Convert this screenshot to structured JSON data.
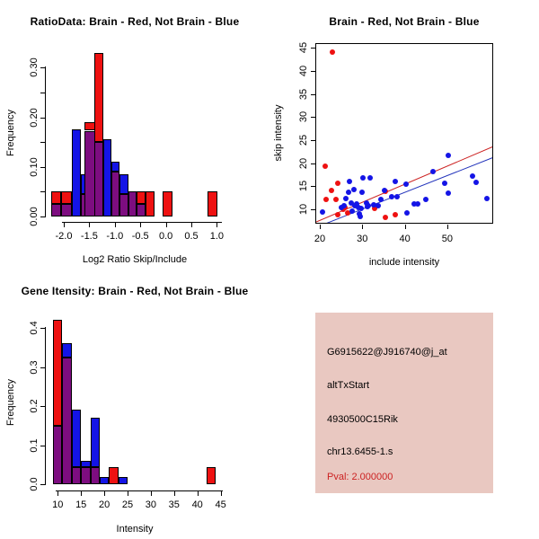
{
  "colors": {
    "red": "#ee1111",
    "blue": "#1414e6",
    "purple": "#7d0d80",
    "line_red": "#cc2222",
    "line_blue": "#2233bb",
    "axis": "#000000",
    "panel_bg": "#e9c8c1",
    "pval_red": "#cc2222"
  },
  "chart_data": [
    {
      "type": "bar",
      "title": "RatioData: Brain - Red, Not Brain - Blue",
      "xlabel": "Log2 Ratio Skip/Include",
      "ylabel": "Frequency",
      "xlim": [
        -2.3,
        1.15
      ],
      "ylim": [
        0,
        0.34
      ],
      "legend_note": "red = Brain, blue = Not Brain, purple = overlap",
      "xticks": [
        {
          "v": -2.0,
          "label": "-2.0"
        },
        {
          "v": -1.5,
          "label": "-1.5"
        },
        {
          "v": -1.0,
          "label": "-1.0"
        },
        {
          "v": -0.5,
          "label": "-0.5"
        },
        {
          "v": 0.0,
          "label": "0.0"
        },
        {
          "v": 0.5,
          "label": "0.5"
        },
        {
          "v": 1.0,
          "label": "1.0"
        }
      ],
      "yticks": [
        {
          "v": 0.0,
          "label": "0.00"
        },
        {
          "v": 0.05
        },
        {
          "v": 0.1,
          "label": "0.10"
        },
        {
          "v": 0.15
        },
        {
          "v": 0.2,
          "label": "0.20"
        },
        {
          "v": 0.25
        },
        {
          "v": 0.3,
          "label": "0.30"
        }
      ],
      "bars": [
        {
          "x0": -2.25,
          "x1": -2.05,
          "segments": [
            [
              "purple",
              0.025
            ],
            [
              "red",
              0.05
            ]
          ]
        },
        {
          "x0": -2.05,
          "x1": -1.85,
          "segments": [
            [
              "purple",
              0.025
            ],
            [
              "red",
              0.05
            ]
          ]
        },
        {
          "x0": -1.85,
          "x1": -1.66,
          "segments": [
            [
              "blue",
              0.175
            ]
          ]
        },
        {
          "x0": -1.67,
          "x1": -1.48,
          "segments": [
            [
              "purple",
              0.045
            ],
            [
              "blue",
              0.085
            ]
          ]
        },
        {
          "x0": -1.59,
          "x1": -1.39,
          "segments": [
            [
              "purple",
              0.173
            ],
            [
              "red",
              0.19
            ]
          ]
        },
        {
          "x0": -1.41,
          "x1": -1.22,
          "segments": [
            [
              "purple",
              0.15
            ],
            [
              "red",
              0.33
            ]
          ]
        },
        {
          "x0": -1.22,
          "x1": -1.06,
          "segments": [
            [
              "blue",
              0.155
            ]
          ]
        },
        {
          "x0": -1.06,
          "x1": -0.9,
          "segments": [
            [
              "purple",
              0.09
            ],
            [
              "blue",
              0.11
            ]
          ]
        },
        {
          "x0": -0.9,
          "x1": -0.73,
          "segments": [
            [
              "purple",
              0.045
            ],
            [
              "blue",
              0.085
            ]
          ]
        },
        {
          "x0": -0.73,
          "x1": -0.57,
          "segments": [
            [
              "purple",
              0.05
            ]
          ]
        },
        {
          "x0": -0.57,
          "x1": -0.4,
          "segments": [
            [
              "purple",
              0.025
            ],
            [
              "red",
              0.05
            ]
          ]
        },
        {
          "x0": -0.4,
          "x1": -0.23,
          "segments": [
            [
              "red",
              0.05
            ]
          ]
        },
        {
          "x0": -0.06,
          "x1": 0.13,
          "segments": [
            [
              "red",
              0.05
            ]
          ]
        },
        {
          "x0": 0.82,
          "x1": 1.01,
          "segments": [
            [
              "red",
              0.05
            ]
          ]
        }
      ]
    },
    {
      "type": "scatter",
      "title": "Brain - Red, Not Brain - Blue",
      "xlabel": "include intensity",
      "ylabel": "skip intensity",
      "xlim": [
        18.8,
        60.9
      ],
      "ylim": [
        6.8,
        46.0
      ],
      "xticks": [
        {
          "v": 20,
          "label": "20"
        },
        {
          "v": 30,
          "label": "30"
        },
        {
          "v": 40,
          "label": "40"
        },
        {
          "v": 50,
          "label": "50"
        }
      ],
      "yticks": [
        {
          "v": 10,
          "label": "10"
        },
        {
          "v": 15,
          "label": "15"
        },
        {
          "v": 20,
          "label": "20"
        },
        {
          "v": 25,
          "label": "25"
        },
        {
          "v": 30,
          "label": "30"
        },
        {
          "v": 35,
          "label": "35"
        },
        {
          "v": 40,
          "label": "40"
        },
        {
          "v": 45,
          "label": "45"
        }
      ],
      "series": [
        {
          "name": "Brain",
          "color": "red",
          "points": [
            [
              22.7,
              44.3
            ],
            [
              21.0,
              19.5
            ],
            [
              24.0,
              15.9
            ],
            [
              22.6,
              14.3
            ],
            [
              21.2,
              12.3
            ],
            [
              23.6,
              12.4
            ],
            [
              25.8,
              10.6
            ],
            [
              25.3,
              10.2
            ],
            [
              24.0,
              9.0
            ],
            [
              26.3,
              9.5
            ],
            [
              32.6,
              10.4
            ],
            [
              35.2,
              14.1
            ],
            [
              35.2,
              8.5
            ],
            [
              37.6,
              9.0
            ]
          ]
        },
        {
          "name": "Not Brain",
          "color": "blue",
          "points": [
            [
              20.4,
              9.7
            ],
            [
              24.8,
              10.5
            ],
            [
              25.6,
              11.0
            ],
            [
              26.0,
              12.5
            ],
            [
              26.8,
              16.2
            ],
            [
              26.6,
              13.9
            ],
            [
              27.2,
              11.5
            ],
            [
              27.5,
              9.9
            ],
            [
              27.9,
              14.4
            ],
            [
              28.0,
              10.9
            ],
            [
              28.5,
              11.4
            ],
            [
              28.8,
              10.6
            ],
            [
              29.0,
              9.3
            ],
            [
              29.2,
              8.6
            ],
            [
              29.5,
              10.3
            ],
            [
              29.8,
              13.9
            ],
            [
              30.0,
              17.0
            ],
            [
              31.7,
              17.0
            ],
            [
              30.7,
              11.5
            ],
            [
              31.2,
              11.0
            ],
            [
              31.0,
              10.8
            ],
            [
              32.4,
              11.2
            ],
            [
              33.5,
              11.0
            ],
            [
              34.2,
              12.4
            ],
            [
              35.0,
              14.2
            ],
            [
              36.7,
              13.0
            ],
            [
              37.5,
              16.2
            ],
            [
              38.0,
              13.0
            ],
            [
              40.0,
              15.7
            ],
            [
              40.2,
              9.5
            ],
            [
              42.0,
              11.3
            ],
            [
              42.9,
              11.3
            ],
            [
              44.7,
              12.3
            ],
            [
              46.4,
              18.4
            ],
            [
              49.2,
              15.9
            ],
            [
              50.1,
              21.9
            ],
            [
              50.1,
              13.7
            ],
            [
              55.7,
              17.3
            ],
            [
              56.5,
              16.0
            ],
            [
              59.1,
              12.6
            ]
          ]
        }
      ],
      "lines": [
        {
          "color": "line_red",
          "x0": 18.8,
          "y0": 7.5,
          "x1": 60.9,
          "y1": 24.0
        },
        {
          "color": "line_blue",
          "x0": 18.8,
          "y0": 6.4,
          "x1": 60.9,
          "y1": 21.7
        }
      ]
    },
    {
      "type": "bar",
      "title": "Gene Itensity: Brain - Red, Not Brain - Blue",
      "xlabel": "Intensity",
      "ylabel": "Frequency",
      "xlim": [
        8.6,
        45.6
      ],
      "ylim": [
        0,
        0.44
      ],
      "legend_note": "red = Brain, blue = Not Brain, purple = overlap",
      "xticks": [
        {
          "v": 10,
          "label": "10"
        },
        {
          "v": 15,
          "label": "15"
        },
        {
          "v": 20,
          "label": "20"
        },
        {
          "v": 25,
          "label": "25"
        },
        {
          "v": 30,
          "label": "30"
        },
        {
          "v": 35,
          "label": "35"
        },
        {
          "v": 40,
          "label": "40"
        },
        {
          "v": 45,
          "label": "45"
        }
      ],
      "yticks": [
        {
          "v": 0.0,
          "label": "0.0"
        },
        {
          "v": 0.1,
          "label": "0.1"
        },
        {
          "v": 0.2,
          "label": "0.2"
        },
        {
          "v": 0.3,
          "label": "0.3"
        },
        {
          "v": 0.4,
          "label": "0.4"
        }
      ],
      "bars": [
        {
          "x0": 9,
          "x1": 11,
          "segments": [
            [
              "purple",
              0.15
            ],
            [
              "red",
              0.42
            ]
          ]
        },
        {
          "x0": 11,
          "x1": 13,
          "segments": [
            [
              "purple",
              0.325
            ],
            [
              "blue",
              0.36
            ]
          ]
        },
        {
          "x0": 13,
          "x1": 15,
          "segments": [
            [
              "purple",
              0.045
            ],
            [
              "blue",
              0.19
            ]
          ]
        },
        {
          "x0": 15,
          "x1": 17,
          "segments": [
            [
              "purple",
              0.045
            ],
            [
              "blue",
              0.06
            ]
          ]
        },
        {
          "x0": 17,
          "x1": 19,
          "segments": [
            [
              "purple",
              0.045
            ],
            [
              "blue",
              0.17
            ]
          ]
        },
        {
          "x0": 19,
          "x1": 21,
          "segments": [
            [
              "blue",
              0.02
            ]
          ]
        },
        {
          "x0": 21,
          "x1": 23,
          "segments": [
            [
              "red",
              0.045
            ]
          ]
        },
        {
          "x0": 23,
          "x1": 25,
          "segments": [
            [
              "blue",
              0.02
            ]
          ]
        },
        {
          "x0": 42,
          "x1": 44,
          "segments": [
            [
              "red",
              0.045
            ]
          ]
        }
      ]
    }
  ],
  "info_panel": {
    "lines": [
      {
        "text": "G6915622@J916740@j_at",
        "color": "black"
      },
      {
        "text": "altTxStart",
        "color": "black"
      },
      {
        "text": "4930500C15Rik",
        "color": "black"
      },
      {
        "text": "chr13.6455-1.s",
        "color": "black"
      },
      {
        "text": "Pval: 2.000000",
        "color": "pval_red"
      }
    ]
  }
}
